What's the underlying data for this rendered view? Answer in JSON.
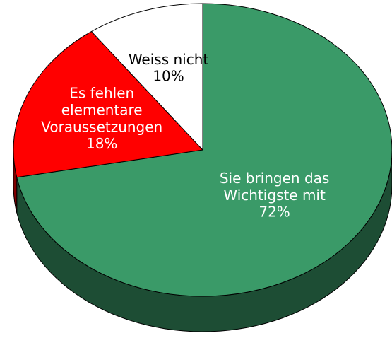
{
  "chart_data": {
    "type": "pie",
    "categories": [
      "Sie bringen das Wichtigste mit",
      "Es fehlen elementare Voraussetzungen",
      "Weiss nicht"
    ],
    "values": [
      72,
      18,
      10
    ],
    "value_labels": [
      "72%",
      "18%",
      "10%"
    ],
    "colors": [
      "#3a9a68",
      "#ff0000",
      "#ffffff"
    ],
    "start_angle": 0,
    "direction": "clockwise",
    "three_d": true
  }
}
